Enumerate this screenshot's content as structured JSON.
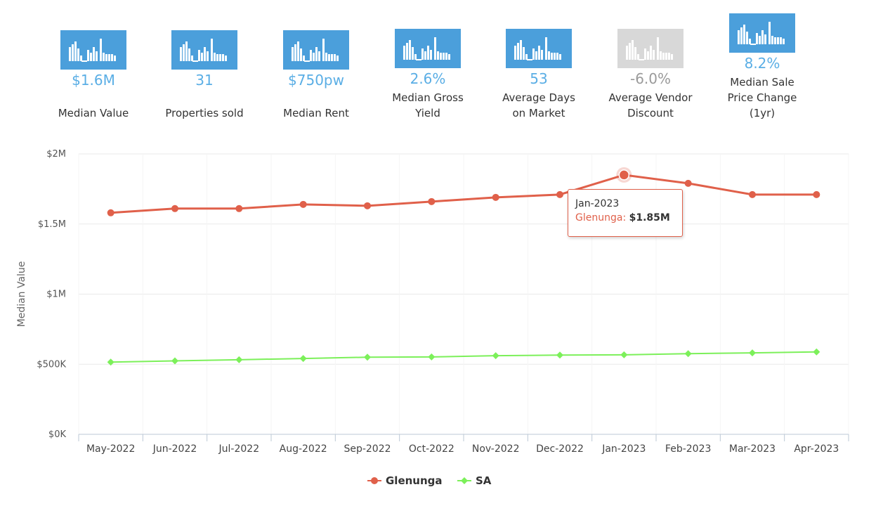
{
  "stats": [
    {
      "value": "$1.6M",
      "label": "Median Value",
      "muted": false
    },
    {
      "value": "31",
      "label": "Properties sold",
      "muted": false
    },
    {
      "value": "$750pw",
      "label": "Median Rent",
      "muted": false
    },
    {
      "value": "2.6%",
      "label": "Median Gross Yield",
      "muted": false
    },
    {
      "value": "53",
      "label": "Average Days on Market",
      "muted": false
    },
    {
      "value": "-6.0%",
      "label": "Average Vendor Discount",
      "muted": true
    },
    {
      "value": "8.2%",
      "label": "Median Sale Price Change (1yr)",
      "muted": false
    }
  ],
  "tooltip": {
    "date": "Jan-2023",
    "series": "Glenunga",
    "sep": ":",
    "value": "$1.85M"
  },
  "chart_data": {
    "type": "line",
    "title": "",
    "xlabel": "",
    "ylabel": "Median Value",
    "categories": [
      "May-2022",
      "Jun-2022",
      "Jul-2022",
      "Aug-2022",
      "Sep-2022",
      "Oct-2022",
      "Nov-2022",
      "Dec-2022",
      "Jan-2023",
      "Feb-2023",
      "Mar-2023",
      "Apr-2023"
    ],
    "yticks": [
      0,
      500000,
      1000000,
      1500000,
      2000000
    ],
    "ytick_labels": [
      "$0K",
      "$500K",
      "$1M",
      "$1.5M",
      "$2M"
    ],
    "ylim": [
      0,
      2000000
    ],
    "legend_position": "bottom-center",
    "series": [
      {
        "name": "Glenunga",
        "color": "#e0604a",
        "marker": "circle",
        "values": [
          1580000,
          1610000,
          1610000,
          1640000,
          1630000,
          1660000,
          1690000,
          1710000,
          1850000,
          1790000,
          1710000,
          1710000
        ]
      },
      {
        "name": "SA",
        "color": "#7cf05a",
        "marker": "diamond",
        "values": [
          515000,
          524000,
          532000,
          541000,
          550000,
          552000,
          561000,
          565000,
          567000,
          575000,
          581000,
          588000
        ]
      }
    ],
    "highlight": {
      "series": 0,
      "index": 8
    }
  }
}
